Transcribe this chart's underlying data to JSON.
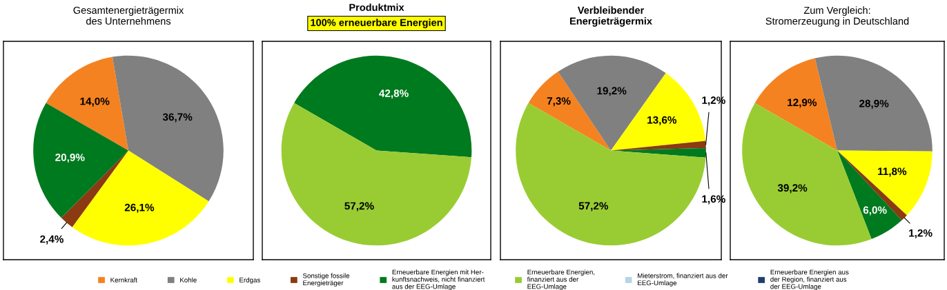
{
  "chart_data": [
    {
      "type": "pie",
      "title": "Gesamtenergieträgermix\ndes Unternehmens",
      "legend": "bottom",
      "categories": [
        "Kernkraft",
        "Kohle",
        "Erdgas",
        "Sonstige fossile\nEnergieträger",
        "Erneuerbare Energien mit Her-\nkunftsnachweis, nicht finanziert\naus der EEG-Umlage",
        "Erneuerbare Energien,\nfinanziert aus der\nEEG-Umlage",
        "Mieterstrom, finanziert aus der\nEEG-Umlage",
        "Erneuerbare Energien aus\nder Region, finanziert aus\nder EEG-Umlage"
      ],
      "values": [
        14.0,
        36.7,
        26.1,
        2.4,
        20.9,
        0,
        0,
        0
      ],
      "colors": [
        "#f58220",
        "#808080",
        "#ffff00",
        "#8b3a12",
        "#007a1e",
        "#99cc33",
        "#b8d3e6",
        "#1f3f6b"
      ],
      "value_labels": [
        "14,0%",
        "36,7%",
        "26,1%",
        "2,4%",
        "20,9%",
        null,
        null,
        null
      ]
    },
    {
      "type": "pie",
      "title": "Produktmix",
      "subtitle": "100% erneuerbare Energien",
      "categories": [
        null,
        null
      ],
      "values": [
        42.8,
        57.2
      ],
      "colors": [
        "#007a1e",
        "#99cc33"
      ],
      "value_labels": [
        "42,8%",
        "57,2%"
      ]
    },
    {
      "type": "pie",
      "title": "Verbleibender\nEnergieträgermix",
      "categories": [
        null,
        null,
        null,
        null,
        null,
        null
      ],
      "values": [
        7.3,
        19.2,
        13.6,
        1.2,
        1.6,
        57.2
      ],
      "colors": [
        "#f58220",
        "#808080",
        "#ffff00",
        "#8b3a12",
        "#007a1e",
        "#99cc33"
      ],
      "value_labels": [
        "7,3%",
        "19,2%",
        "13,6%",
        "1,2%",
        "1,6%",
        "57,2%"
      ]
    },
    {
      "type": "pie",
      "title": "Zum Vergleich:\nStromerzeugung in Deutschland",
      "categories": [
        null,
        null,
        null,
        null,
        null,
        null
      ],
      "values": [
        12.9,
        28.9,
        11.8,
        1.2,
        6.0,
        39.2
      ],
      "colors": [
        "#f58220",
        "#808080",
        "#ffff00",
        "#8b3a12",
        "#007a1e",
        "#99cc33"
      ],
      "value_labels": [
        "12,9%",
        "28,9%",
        "11,8%",
        "1,2%",
        "6,0%",
        "39,2%"
      ]
    }
  ]
}
